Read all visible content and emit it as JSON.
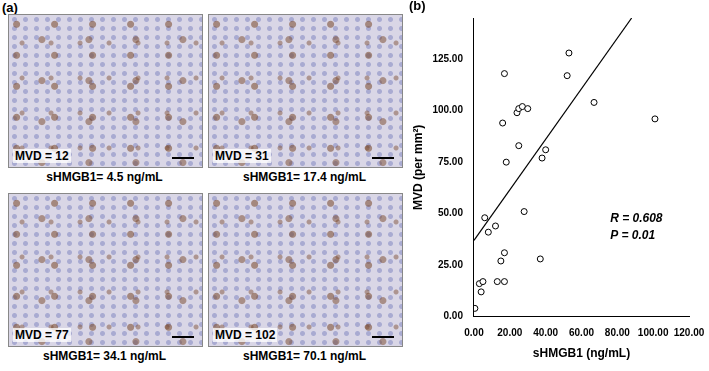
{
  "panel_a": {
    "label": "(a)",
    "images": [
      {
        "mvd": "MVD = 12",
        "caption": "sHMGB1= 4.5 ng/mL"
      },
      {
        "mvd": "MVD = 31",
        "caption": "sHMGB1= 17.4 ng/mL"
      },
      {
        "mvd": "MVD = 77",
        "caption": "sHMGB1= 34.1 ng/mL"
      },
      {
        "mvd": "MVD = 102",
        "caption": "sHMGB1= 70.1 ng/mL"
      }
    ]
  },
  "chart_data": {
    "type": "scatter",
    "title": "(b)",
    "x_label": "sHMGB1 (ng/mL)",
    "y_label": "MVD (per mm²)",
    "annotations": [
      "R = 0.608",
      "P = 0.01"
    ],
    "series": [
      {
        "type": "scatter",
        "color": "#000000",
        "marker": "circle",
        "x": [
          0.5,
          3,
          4,
          5,
          6,
          8,
          12,
          13,
          15,
          16,
          17,
          17,
          17,
          18,
          24,
          25,
          25,
          27,
          28,
          30,
          37,
          38,
          40,
          52,
          53,
          67,
          101
        ],
        "values": [
          4,
          16,
          12,
          17,
          48,
          41,
          44,
          17,
          27,
          94,
          17,
          31,
          118,
          75,
          99,
          101,
          83,
          102,
          51,
          101,
          28,
          77,
          81,
          117,
          128,
          104,
          96
        ]
      },
      {
        "type": "line",
        "color": "#000000",
        "line_style": "solid",
        "x": [
          0,
          88
        ],
        "values": [
          37,
          145
        ]
      }
    ],
    "xlim": [
      0,
      120
    ],
    "xticks": [
      {
        "value": 0,
        "label": "0.00"
      },
      {
        "value": 20,
        "label": "20.00"
      },
      {
        "value": 40,
        "label": "40.00"
      },
      {
        "value": 60,
        "label": "60.00"
      },
      {
        "value": 80,
        "label": "80.00"
      },
      {
        "value": 100,
        "label": "100.00"
      },
      {
        "value": 120,
        "label": "120.00"
      }
    ],
    "ylim": [
      0,
      145
    ],
    "yticks": [
      {
        "value": 0,
        "label": "0.00"
      },
      {
        "value": 25,
        "label": "25.00"
      },
      {
        "value": 50,
        "label": "50.00"
      },
      {
        "value": 75,
        "label": "75.00"
      },
      {
        "value": 100,
        "label": "100.00"
      },
      {
        "value": 125,
        "label": "125.00"
      }
    ],
    "grid": false
  }
}
